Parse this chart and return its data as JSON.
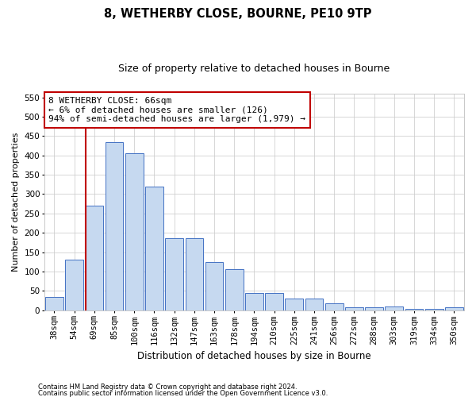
{
  "title1": "8, WETHERBY CLOSE, BOURNE, PE10 9TP",
  "title2": "Size of property relative to detached houses in Bourne",
  "xlabel": "Distribution of detached houses by size in Bourne",
  "ylabel": "Number of detached properties",
  "categories": [
    "38sqm",
    "54sqm",
    "69sqm",
    "85sqm",
    "100sqm",
    "116sqm",
    "132sqm",
    "147sqm",
    "163sqm",
    "178sqm",
    "194sqm",
    "210sqm",
    "225sqm",
    "241sqm",
    "256sqm",
    "272sqm",
    "288sqm",
    "303sqm",
    "319sqm",
    "334sqm",
    "350sqm"
  ],
  "values": [
    35,
    130,
    270,
    435,
    405,
    320,
    185,
    185,
    125,
    105,
    45,
    45,
    30,
    30,
    17,
    8,
    8,
    10,
    3,
    3,
    7
  ],
  "bar_color": "#c6d9f0",
  "bar_edge_color": "#4472c4",
  "vline_x_index": 2,
  "vline_color": "#c00000",
  "annotation_line1": "8 WETHERBY CLOSE: 66sqm",
  "annotation_line2": "← 6% of detached houses are smaller (126)",
  "annotation_line3": "94% of semi-detached houses are larger (1,979) →",
  "annotation_box_color": "#ffffff",
  "annotation_box_edge": "#c00000",
  "ylim": [
    0,
    560
  ],
  "yticks": [
    0,
    50,
    100,
    150,
    200,
    250,
    300,
    350,
    400,
    450,
    500,
    550
  ],
  "footer1": "Contains HM Land Registry data © Crown copyright and database right 2024.",
  "footer2": "Contains public sector information licensed under the Open Government Licence v3.0.",
  "bg_color": "#ffffff",
  "grid_color": "#c8c8c8",
  "title1_fontsize": 10.5,
  "title2_fontsize": 9,
  "xlabel_fontsize": 8.5,
  "ylabel_fontsize": 8,
  "annotation_fontsize": 8,
  "tick_fontsize": 7.5,
  "ytick_fontsize": 7.5
}
